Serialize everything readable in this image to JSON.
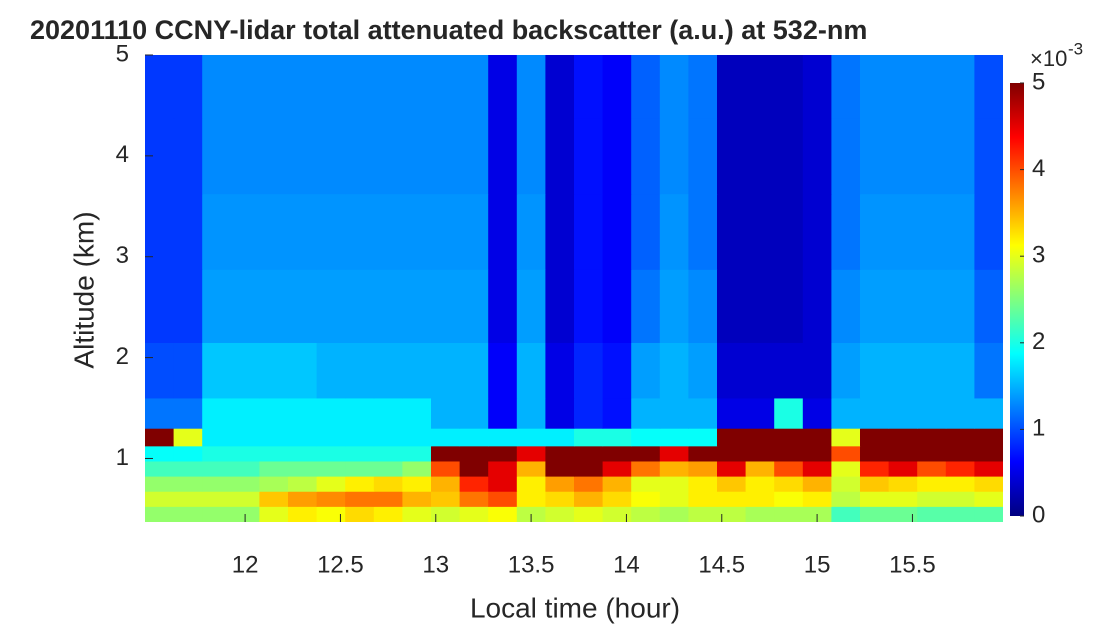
{
  "chart_data": {
    "type": "heatmap",
    "title": "20201110 CCNY-lidar total attenuated backscatter (a.u.) at 532-nm",
    "x_label": "Local time (hour)",
    "y_label": "Altitude (km)",
    "xlim": [
      11.475,
      15.975
    ],
    "ylim": [
      0.37,
      5
    ],
    "xticks": [
      12,
      12.5,
      13,
      13.5,
      14,
      14.5,
      15,
      15.5
    ],
    "yticks": [
      1,
      2,
      3,
      4,
      5
    ],
    "clim": [
      0,
      5
    ],
    "cticks": [
      0,
      1,
      2,
      3,
      4,
      5
    ],
    "colorbar_multiplier": "×10",
    "colorbar_exponent": "-3",
    "colormap": "jet",
    "x": [
      11.55,
      11.7,
      11.85,
      12.0,
      12.15,
      12.3,
      12.45,
      12.6,
      12.75,
      12.9,
      13.05,
      13.2,
      13.35,
      13.5,
      13.65,
      13.8,
      13.95,
      14.1,
      14.25,
      14.4,
      14.55,
      14.7,
      14.85,
      15.0,
      15.15,
      15.3,
      15.45,
      15.6,
      15.75,
      15.9
    ],
    "y": [
      0.45,
      0.6,
      0.75,
      0.9,
      1.05,
      1.2,
      1.4,
      1.8,
      2.5,
      3.25,
      4.0,
      4.75
    ],
    "z": [
      [
        2.6,
        2.6,
        2.6,
        2.6,
        3.0,
        3.2,
        3.1,
        3.3,
        3.2,
        3.0,
        2.9,
        3.0,
        3.1,
        2.8,
        2.9,
        3.0,
        2.9,
        2.8,
        2.7,
        2.8,
        2.8,
        2.7,
        2.7,
        2.7,
        2.2,
        2.4,
        2.4,
        2.3,
        2.3,
        2.3
      ],
      [
        2.9,
        2.9,
        2.9,
        2.9,
        3.4,
        3.6,
        3.7,
        3.8,
        3.8,
        3.5,
        3.4,
        3.8,
        4.0,
        3.2,
        3.3,
        3.5,
        3.3,
        3.1,
        3.0,
        3.2,
        3.2,
        3.2,
        3.1,
        3.2,
        2.8,
        3.0,
        3.0,
        2.9,
        2.9,
        3.0
      ],
      [
        2.6,
        2.6,
        2.6,
        2.6,
        2.7,
        2.8,
        3.0,
        3.2,
        3.3,
        3.2,
        3.5,
        4.2,
        4.5,
        3.2,
        3.6,
        3.8,
        3.5,
        3.0,
        3.0,
        3.2,
        3.4,
        3.2,
        3.3,
        3.5,
        2.9,
        3.4,
        3.3,
        3.2,
        3.2,
        3.3
      ],
      [
        2.2,
        2.2,
        2.2,
        2.2,
        2.4,
        2.4,
        2.4,
        2.4,
        2.4,
        2.6,
        4.0,
        5.0,
        4.5,
        3.5,
        5.0,
        5.2,
        4.5,
        3.8,
        3.5,
        3.6,
        4.5,
        3.5,
        4.0,
        4.5,
        3.0,
        4.2,
        4.5,
        4.0,
        4.2,
        4.5
      ],
      [
        1.9,
        1.9,
        2.0,
        2.0,
        2.0,
        2.0,
        2.0,
        2.0,
        2.0,
        2.0,
        5.0,
        5.5,
        5.5,
        4.5,
        5.5,
        5.5,
        5.5,
        5.0,
        4.5,
        5.0,
        5.5,
        5.5,
        5.5,
        5.5,
        4.0,
        5.5,
        5.5,
        5.5,
        5.5,
        5.5
      ],
      [
        5.5,
        3.0,
        1.8,
        1.8,
        1.8,
        1.8,
        1.8,
        1.8,
        1.8,
        1.8,
        1.8,
        1.8,
        1.8,
        1.8,
        1.8,
        2.0,
        2.0,
        1.9,
        1.9,
        1.9,
        5.5,
        5.5,
        5.5,
        5.5,
        3.0,
        5.5,
        5.5,
        5.5,
        5.5,
        5.5
      ],
      [
        1.2,
        1.2,
        1.8,
        1.8,
        1.8,
        1.8,
        1.8,
        1.8,
        1.8,
        1.8,
        1.5,
        1.5,
        0.6,
        1.5,
        0.5,
        0.8,
        0.7,
        1.5,
        1.5,
        1.5,
        0.5,
        0.5,
        2.0,
        0.5,
        1.5,
        1.5,
        1.5,
        1.5,
        1.5,
        1.5
      ],
      [
        1.0,
        1.0,
        1.6,
        1.6,
        1.6,
        1.6,
        1.5,
        1.5,
        1.5,
        1.5,
        1.5,
        1.5,
        0.6,
        1.5,
        0.5,
        0.8,
        0.7,
        1.4,
        1.5,
        1.4,
        0.4,
        0.4,
        0.4,
        0.4,
        1.4,
        1.5,
        1.5,
        1.5,
        1.5,
        1.2
      ],
      [
        0.9,
        0.9,
        1.4,
        1.4,
        1.4,
        1.4,
        1.4,
        1.4,
        1.4,
        1.4,
        1.4,
        1.4,
        0.5,
        1.4,
        0.4,
        0.7,
        0.6,
        1.2,
        1.4,
        1.3,
        0.3,
        0.3,
        0.3,
        0.4,
        1.3,
        1.4,
        1.4,
        1.4,
        1.4,
        1.1
      ],
      [
        0.9,
        0.9,
        1.35,
        1.35,
        1.35,
        1.35,
        1.35,
        1.35,
        1.35,
        1.35,
        1.35,
        1.35,
        0.5,
        1.35,
        0.4,
        0.7,
        0.6,
        1.1,
        1.35,
        1.2,
        0.3,
        0.3,
        0.3,
        0.4,
        1.2,
        1.35,
        1.35,
        1.35,
        1.35,
        1.0
      ],
      [
        0.9,
        0.9,
        1.3,
        1.3,
        1.3,
        1.3,
        1.3,
        1.3,
        1.3,
        1.3,
        1.3,
        1.3,
        0.5,
        1.3,
        0.4,
        0.7,
        0.6,
        1.1,
        1.3,
        1.2,
        0.3,
        0.3,
        0.3,
        0.4,
        1.2,
        1.3,
        1.3,
        1.3,
        1.3,
        1.0
      ],
      [
        0.9,
        0.9,
        1.3,
        1.3,
        1.3,
        1.3,
        1.3,
        1.3,
        1.3,
        1.3,
        1.3,
        1.3,
        0.5,
        1.3,
        0.4,
        0.7,
        0.6,
        1.1,
        1.3,
        1.2,
        0.3,
        0.3,
        0.3,
        0.4,
        1.2,
        1.3,
        1.3,
        1.3,
        1.3,
        1.0
      ]
    ]
  }
}
